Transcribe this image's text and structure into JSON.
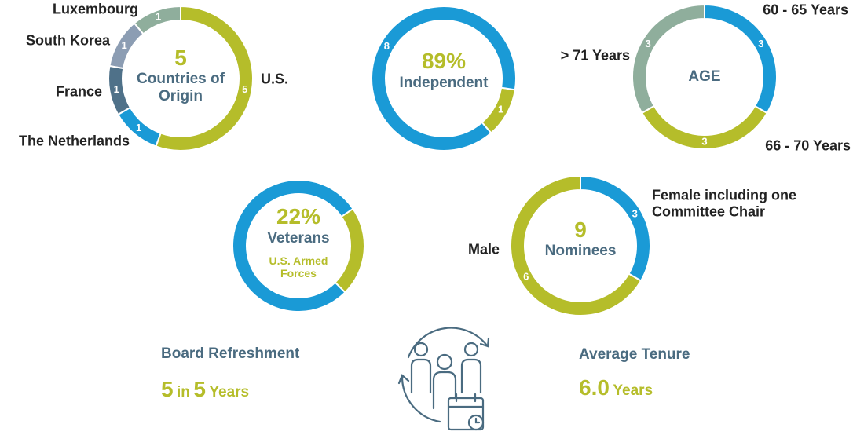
{
  "chart_data": [
    {
      "type": "donut",
      "center_text": [
        "5",
        "Countries of Origin"
      ],
      "categories": [
        "U.S.",
        "The Netherlands",
        "France",
        "South Korea",
        "Luxembourg"
      ],
      "values": [
        5,
        1,
        1,
        1,
        1
      ],
      "colors": [
        "#b5bd2a",
        "#1a9ad6",
        "#4f7189",
        "#8c9db3",
        "#8fae9c"
      ]
    },
    {
      "type": "donut",
      "center_text": [
        "89%",
        "Independent"
      ],
      "categories": [
        null,
        null
      ],
      "values": [
        8,
        1
      ],
      "colors": [
        "#1a9ad6",
        "#b5bd2a"
      ]
    },
    {
      "type": "donut",
      "center_text": [
        "AGE"
      ],
      "categories": [
        "60 - 65 Years",
        "66 - 70 Years",
        "> 71 Years"
      ],
      "values": [
        3,
        3,
        3
      ],
      "colors": [
        "#1a9ad6",
        "#b5bd2a",
        "#8fae9c"
      ]
    },
    {
      "type": "donut",
      "center_text": [
        "22%",
        "Veterans",
        "U.S. Armed Forces"
      ],
      "categories": [
        null,
        null
      ],
      "values": [
        78,
        22
      ],
      "colors": [
        "#1a9ad6",
        "#b5bd2a"
      ]
    },
    {
      "type": "donut",
      "center_text": [
        "9",
        "Nominees"
      ],
      "categories": [
        "Female including one Committee Chair",
        "Male"
      ],
      "values": [
        3,
        6
      ],
      "colors": [
        "#1a9ad6",
        "#b5bd2a"
      ]
    }
  ],
  "board_refreshment": {
    "title": "Board Refreshment",
    "count": "5",
    "connector": "in",
    "years": "5",
    "unit": "Years"
  },
  "average_tenure": {
    "title": "Average Tenure",
    "value": "6.0",
    "unit": "Years"
  }
}
